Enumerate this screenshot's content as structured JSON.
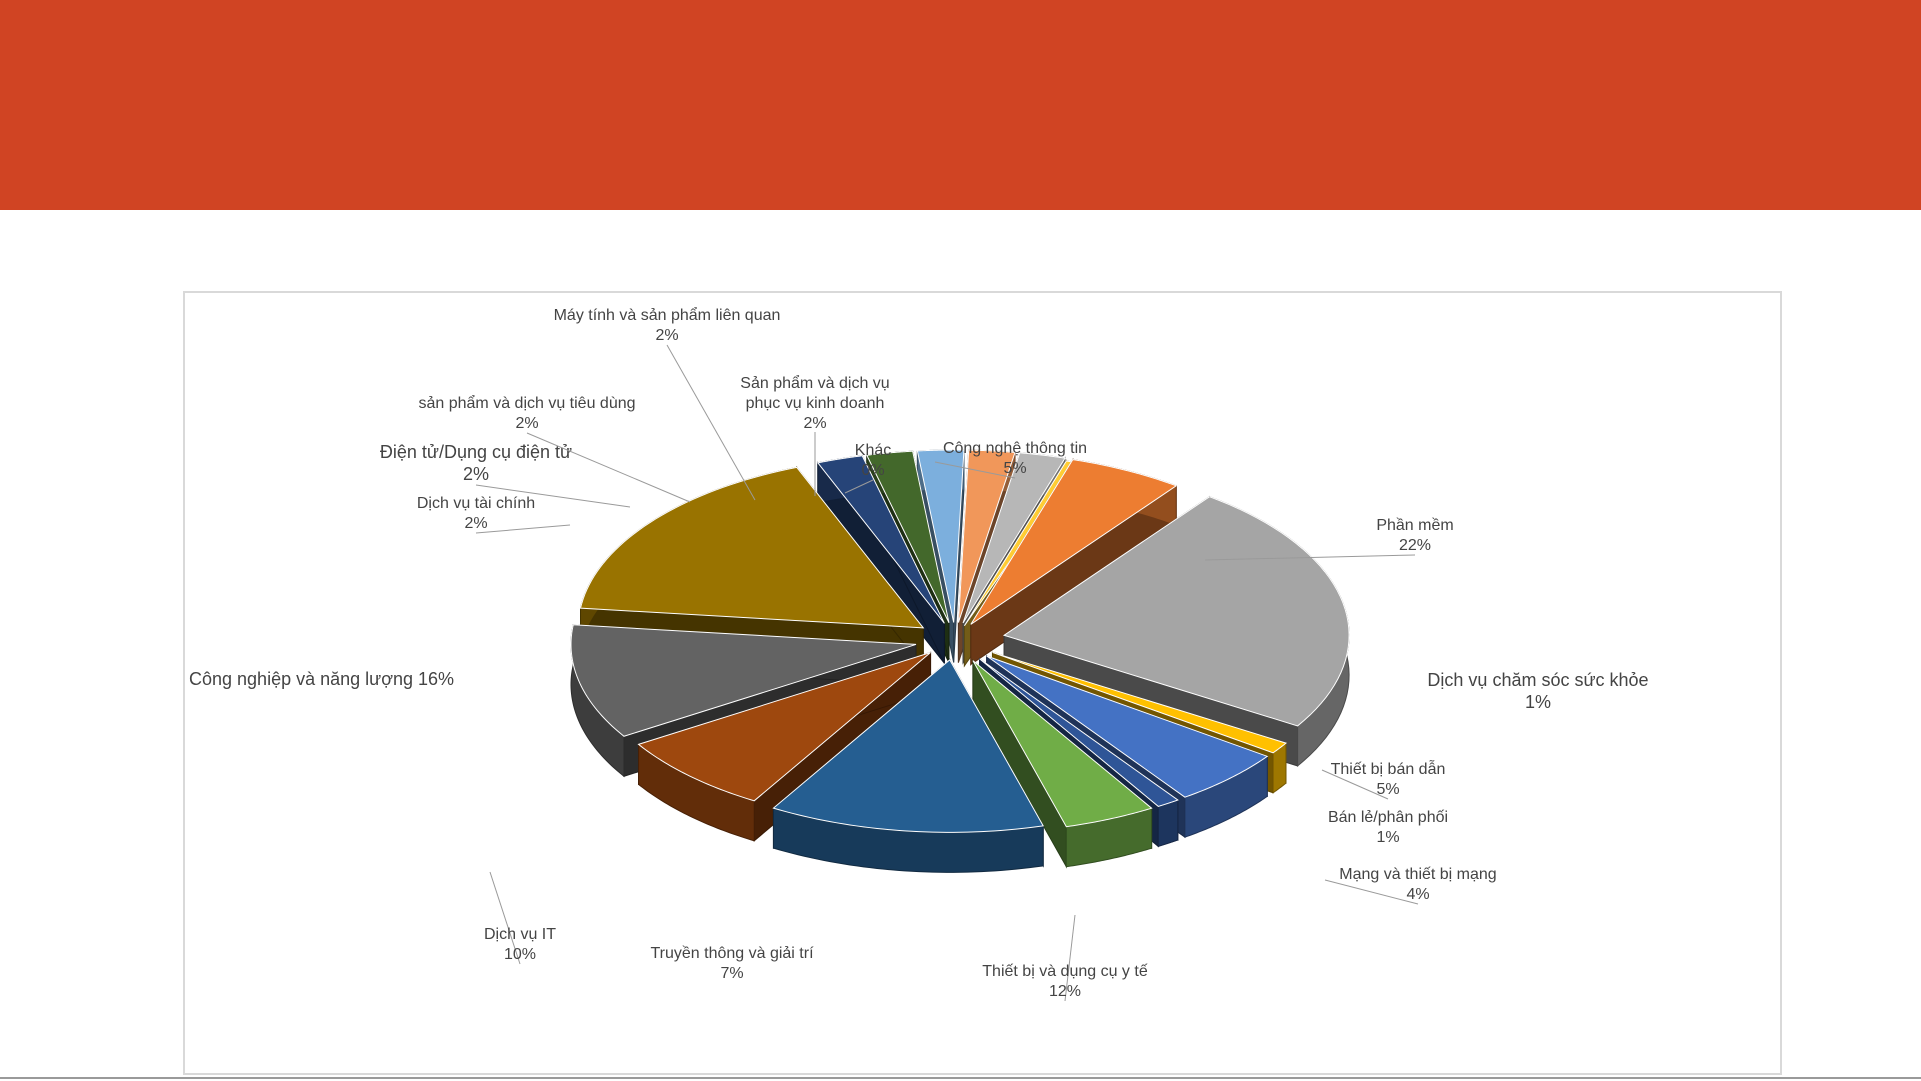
{
  "slide": {
    "banner_color": "#d04423"
  },
  "chart_data": {
    "type": "pie",
    "title": "",
    "labels": [
      "Công nghệ thông tin",
      "Phần mềm",
      "Dịch vụ chăm sóc sức khỏe",
      "Thiết bị bán dẫn",
      "Bán lẻ/phân phối",
      "Mạng và thiết bị mạng",
      "Thiết bị và dụng cụ y tế",
      "Truyền thông và giải trí",
      "Dịch vụ IT",
      "Công nghiệp và năng lượng",
      "Dịch vụ tài chính",
      "Điện tử/Dụng cụ điện tử",
      "sản phẩm và dịch vụ tiêu dùng",
      "Máy tính và sản phẩm liên quan",
      "Sản phẩm và dịch vụ phục vụ kinh doanh",
      "Khác"
    ],
    "values": [
      5,
      22,
      1,
      5,
      1,
      4,
      12,
      7,
      10,
      16,
      2,
      2,
      2,
      2,
      2,
      0
    ],
    "value_labels": [
      "5%",
      "22%",
      "1%",
      "5%",
      "1%",
      "4%",
      "12%",
      "7%",
      "10%",
      "16%",
      "2%",
      "2%",
      "2%",
      "2%",
      "2%",
      "0%"
    ],
    "label_lines": [
      [
        "Công nghệ thông tin",
        "5%"
      ],
      [
        "Phần mềm",
        "22%"
      ],
      [
        "Dịch vụ chăm sóc sức khỏe",
        "1%"
      ],
      [
        "Thiết bị bán dẫn",
        "5%"
      ],
      [
        "Bán lẻ/phân phối",
        "1%"
      ],
      [
        "Mạng và thiết bị mạng",
        "4%"
      ],
      [
        "Thiết bị và dụng cụ y tế",
        "12%"
      ],
      [
        "Truyền thông và giải trí",
        "7%"
      ],
      [
        "Dịch vụ IT",
        "10%"
      ],
      [
        "Công nghiệp và năng lượng 16%"
      ],
      [
        "Dịch vụ tài chính",
        "2%"
      ],
      [
        "Điện tử/Dụng cụ điện tử",
        "2%"
      ],
      [
        "sản phẩm và dịch vụ tiêu dùng",
        "2%"
      ],
      [
        "Máy tính và sản phẩm liên quan",
        "2%"
      ],
      [
        "Sản phẩm và dịch vụ",
        "phục vụ kinh doanh",
        "2%"
      ],
      [
        "Khác",
        "0%"
      ]
    ],
    "colors": [
      "#ed7d31",
      "#a5a5a5",
      "#ffc000",
      "#4472c4",
      "#2f5597",
      "#70ad47",
      "#255e91",
      "#9e480e",
      "#636363",
      "#997300",
      "#264478",
      "#43682b",
      "#7cafdd",
      "#f1975a",
      "#b7b7b7",
      "#ffcd33"
    ],
    "style": "3d-exploded",
    "legend": "none"
  }
}
